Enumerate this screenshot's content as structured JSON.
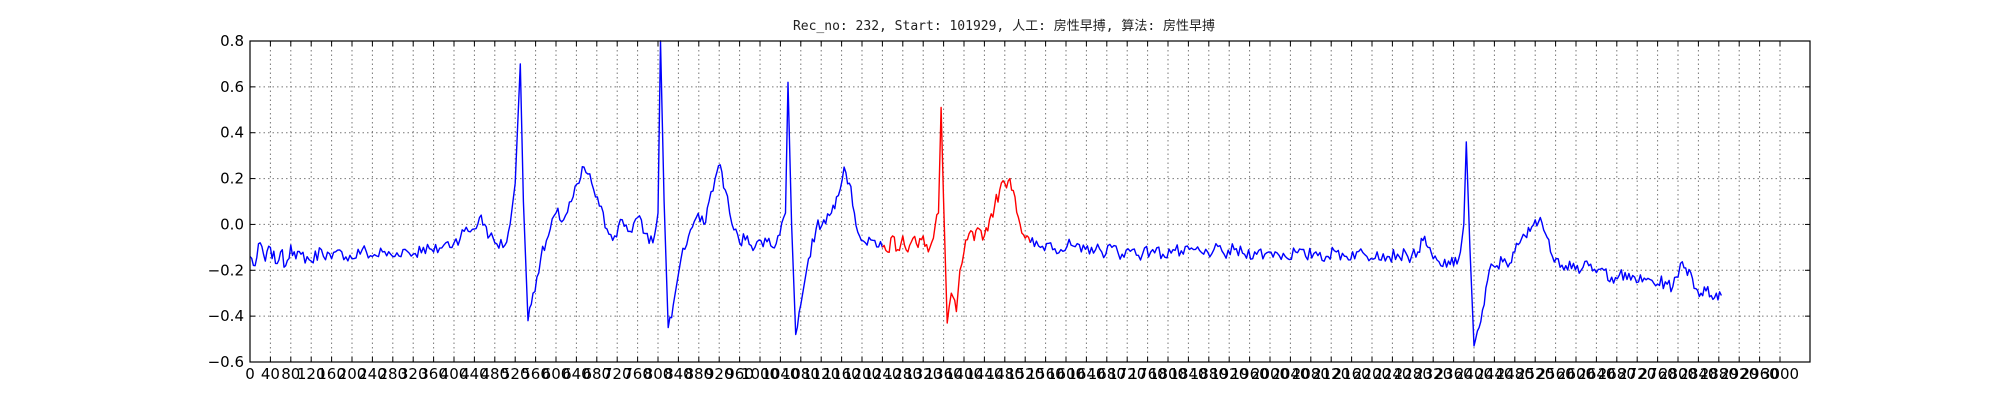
{
  "chart_data": {
    "type": "line",
    "title": "Rec_no: 232, Start: 101929, 人工: 房性早搏, 算法: 房性早搏",
    "xlabel": "",
    "ylabel": "",
    "xlim": [
      0,
      3000
    ],
    "ylim": [
      -0.6,
      0.8
    ],
    "yticks": [
      -0.6,
      -0.4,
      -0.2,
      0.0,
      0.2,
      0.4,
      0.6,
      0.8
    ],
    "ytick_labels": [
      "−0.6",
      "−0.4",
      "−0.2",
      "0.0",
      "0.2",
      "0.4",
      "0.6",
      "0.8"
    ],
    "xticks": [
      0,
      40,
      80,
      120,
      160,
      200,
      240,
      280,
      320,
      360,
      400,
      440,
      480,
      520,
      560,
      600,
      640,
      680,
      720,
      760,
      800,
      840,
      880,
      920,
      960,
      1000,
      1040,
      1080,
      1120,
      1160,
      1200,
      1240,
      1280,
      1320,
      1360,
      1400,
      1440,
      1480,
      1520,
      1560,
      1600,
      1640,
      1680,
      1720,
      1760,
      1800,
      1840,
      1880,
      1920,
      1960,
      2000,
      2040,
      2080,
      2120,
      2160,
      2200,
      2240,
      2280,
      2320,
      2360,
      2400,
      2440,
      2480,
      2520,
      2560,
      2600,
      2640,
      2680,
      2720,
      2760,
      2800,
      2840,
      2880,
      2920,
      2960,
      3000
    ],
    "grid": true,
    "series": [
      {
        "color": "#0000ff",
        "points": [
          [
            0,
            -0.14
          ],
          [
            10,
            -0.18
          ],
          [
            20,
            -0.08
          ],
          [
            30,
            -0.16
          ],
          [
            40,
            -0.1
          ],
          [
            50,
            -0.17
          ],
          [
            60,
            -0.12
          ],
          [
            70,
            -0.18
          ],
          [
            80,
            -0.09
          ],
          [
            90,
            -0.15
          ],
          [
            100,
            -0.13
          ],
          [
            120,
            -0.16
          ],
          [
            140,
            -0.11
          ],
          [
            160,
            -0.15
          ],
          [
            180,
            -0.12
          ],
          [
            200,
            -0.15
          ],
          [
            220,
            -0.11
          ],
          [
            240,
            -0.14
          ],
          [
            260,
            -0.12
          ],
          [
            280,
            -0.14
          ],
          [
            300,
            -0.11
          ],
          [
            320,
            -0.13
          ],
          [
            340,
            -0.1
          ],
          [
            360,
            -0.12
          ],
          [
            380,
            -0.09
          ],
          [
            400,
            -0.08
          ],
          [
            420,
            -0.03
          ],
          [
            440,
            -0.02
          ],
          [
            450,
            0.03
          ],
          [
            460,
            0.0
          ],
          [
            470,
            -0.05
          ],
          [
            480,
            -0.08
          ],
          [
            500,
            -0.09
          ],
          [
            510,
            0.0
          ],
          [
            520,
            0.18
          ],
          [
            530,
            0.7
          ],
          [
            536,
            0.1
          ],
          [
            545,
            -0.42
          ],
          [
            555,
            -0.3
          ],
          [
            570,
            -0.15
          ],
          [
            585,
            -0.05
          ],
          [
            600,
            0.05
          ],
          [
            615,
            0.02
          ],
          [
            630,
            0.1
          ],
          [
            645,
            0.18
          ],
          [
            655,
            0.25
          ],
          [
            670,
            0.18
          ],
          [
            685,
            0.08
          ],
          [
            700,
            -0.02
          ],
          [
            715,
            -0.05
          ],
          [
            730,
            0.02
          ],
          [
            745,
            -0.03
          ],
          [
            760,
            0.03
          ],
          [
            775,
            -0.04
          ],
          [
            790,
            -0.08
          ],
          [
            800,
            0.05
          ],
          [
            805,
            0.8
          ],
          [
            812,
            0.1
          ],
          [
            820,
            -0.45
          ],
          [
            830,
            -0.35
          ],
          [
            845,
            -0.15
          ],
          [
            860,
            -0.05
          ],
          [
            875,
            0.03
          ],
          [
            890,
            0.0
          ],
          [
            900,
            0.1
          ],
          [
            912,
            0.2
          ],
          [
            922,
            0.26
          ],
          [
            932,
            0.15
          ],
          [
            945,
            0.0
          ],
          [
            960,
            -0.08
          ],
          [
            975,
            -0.05
          ],
          [
            990,
            -0.1
          ],
          [
            1010,
            -0.06
          ],
          [
            1025,
            -0.1
          ],
          [
            1035,
            -0.05
          ],
          [
            1050,
            0.05
          ],
          [
            1055,
            0.62
          ],
          [
            1062,
            0.0
          ],
          [
            1070,
            -0.48
          ],
          [
            1080,
            -0.35
          ],
          [
            1095,
            -0.15
          ],
          [
            1110,
            -0.02
          ],
          [
            1125,
            0.02
          ],
          [
            1140,
            0.05
          ],
          [
            1150,
            0.12
          ],
          [
            1165,
            0.25
          ],
          [
            1175,
            0.18
          ],
          [
            1185,
            0.05
          ],
          [
            1195,
            -0.05
          ],
          [
            1210,
            -0.09
          ],
          [
            1225,
            -0.07
          ],
          [
            1240,
            -0.1
          ]
        ]
      },
      {
        "color": "#ff0000",
        "points": [
          [
            1240,
            -0.1
          ],
          [
            1250,
            -0.12
          ],
          [
            1260,
            -0.05
          ],
          [
            1270,
            -0.11
          ],
          [
            1280,
            -0.05
          ],
          [
            1290,
            -0.12
          ],
          [
            1300,
            -0.06
          ],
          [
            1310,
            -0.1
          ],
          [
            1320,
            -0.05
          ],
          [
            1330,
            -0.12
          ],
          [
            1340,
            -0.06
          ],
          [
            1350,
            0.05
          ],
          [
            1355,
            0.51
          ],
          [
            1360,
            0.1
          ],
          [
            1367,
            -0.43
          ],
          [
            1375,
            -0.3
          ],
          [
            1385,
            -0.38
          ],
          [
            1392,
            -0.2
          ],
          [
            1400,
            -0.12
          ],
          [
            1410,
            -0.04
          ],
          [
            1420,
            -0.07
          ],
          [
            1430,
            -0.02
          ],
          [
            1440,
            -0.05
          ],
          [
            1450,
            0.02
          ],
          [
            1460,
            0.08
          ],
          [
            1470,
            0.15
          ],
          [
            1480,
            0.18
          ],
          [
            1490,
            0.2
          ],
          [
            1500,
            0.12
          ],
          [
            1510,
            0.0
          ],
          [
            1520,
            -0.06
          ],
          [
            1530,
            -0.08
          ]
        ]
      },
      {
        "color": "#0000ff",
        "points": [
          [
            1530,
            -0.08
          ],
          [
            1550,
            -0.1
          ],
          [
            1570,
            -0.08
          ],
          [
            1590,
            -0.11
          ],
          [
            1610,
            -0.09
          ],
          [
            1630,
            -0.12
          ],
          [
            1650,
            -0.1
          ],
          [
            1670,
            -0.12
          ],
          [
            1690,
            -0.1
          ],
          [
            1710,
            -0.13
          ],
          [
            1730,
            -0.11
          ],
          [
            1750,
            -0.13
          ],
          [
            1770,
            -0.11
          ],
          [
            1790,
            -0.13
          ],
          [
            1810,
            -0.11
          ],
          [
            1830,
            -0.13
          ],
          [
            1850,
            -0.11
          ],
          [
            1870,
            -0.13
          ],
          [
            1890,
            -0.11
          ],
          [
            1910,
            -0.13
          ],
          [
            1930,
            -0.11
          ],
          [
            1950,
            -0.13
          ],
          [
            1970,
            -0.12
          ],
          [
            1990,
            -0.13
          ],
          [
            2010,
            -0.12
          ],
          [
            2030,
            -0.14
          ],
          [
            2050,
            -0.12
          ],
          [
            2070,
            -0.14
          ],
          [
            2090,
            -0.12
          ],
          [
            2110,
            -0.14
          ],
          [
            2130,
            -0.12
          ],
          [
            2150,
            -0.14
          ],
          [
            2170,
            -0.12
          ],
          [
            2190,
            -0.14
          ],
          [
            2210,
            -0.12
          ],
          [
            2230,
            -0.14
          ],
          [
            2250,
            -0.13
          ],
          [
            2270,
            -0.14
          ],
          [
            2290,
            -0.12
          ],
          [
            2300,
            -0.07
          ],
          [
            2310,
            -0.1
          ],
          [
            2320,
            -0.15
          ],
          [
            2335,
            -0.18
          ],
          [
            2350,
            -0.16
          ],
          [
            2360,
            -0.18
          ],
          [
            2370,
            -0.15
          ],
          [
            2380,
            0.0
          ],
          [
            2385,
            0.36
          ],
          [
            2392,
            -0.1
          ],
          [
            2400,
            -0.53
          ],
          [
            2410,
            -0.45
          ],
          [
            2420,
            -0.35
          ],
          [
            2430,
            -0.2
          ],
          [
            2445,
            -0.18
          ],
          [
            2460,
            -0.15
          ],
          [
            2470,
            -0.17
          ],
          [
            2480,
            -0.12
          ],
          [
            2490,
            -0.08
          ],
          [
            2500,
            -0.05
          ],
          [
            2510,
            -0.03
          ],
          [
            2520,
            0.02
          ],
          [
            2530,
            0.03
          ],
          [
            2540,
            -0.04
          ],
          [
            2550,
            -0.12
          ],
          [
            2565,
            -0.15
          ],
          [
            2580,
            -0.18
          ],
          [
            2595,
            -0.17
          ],
          [
            2610,
            -0.2
          ],
          [
            2625,
            -0.18
          ],
          [
            2640,
            -0.21
          ],
          [
            2655,
            -0.2
          ],
          [
            2670,
            -0.23
          ],
          [
            2685,
            -0.22
          ],
          [
            2700,
            -0.24
          ],
          [
            2715,
            -0.23
          ],
          [
            2730,
            -0.25
          ],
          [
            2745,
            -0.24
          ],
          [
            2760,
            -0.26
          ],
          [
            2775,
            -0.25
          ],
          [
            2790,
            -0.27
          ],
          [
            2800,
            -0.23
          ],
          [
            2805,
            -0.17
          ],
          [
            2815,
            -0.19
          ],
          [
            2825,
            -0.21
          ],
          [
            2835,
            -0.28
          ],
          [
            2845,
            -0.3
          ],
          [
            2855,
            -0.29
          ],
          [
            2865,
            -0.31
          ],
          [
            2875,
            -0.3
          ],
          [
            2885,
            -0.31
          ]
        ]
      }
    ]
  }
}
